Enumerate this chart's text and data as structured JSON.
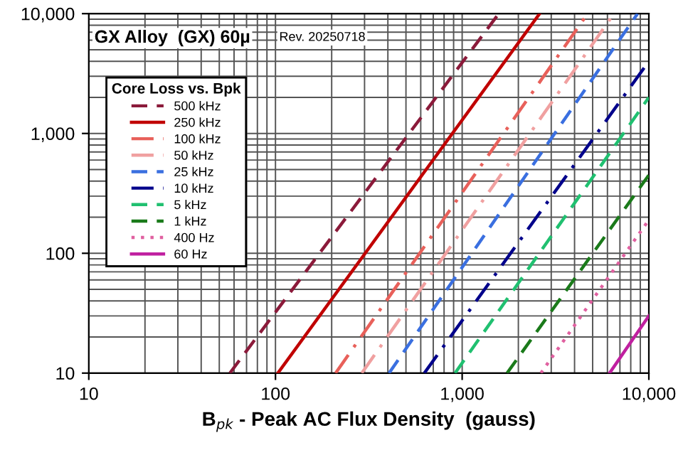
{
  "chart_data": {
    "type": "line",
    "title": "GX Alloy  (GX) 60µ",
    "annotations": [
      "Rev. 20250718"
    ],
    "xlabel": "B$_{pk}$ - Peak AC Flux Density  (gauss)",
    "legend_title": "Core Loss vs. Bpk",
    "log": "xy",
    "xlim": [
      10,
      10000
    ],
    "ylim": [
      10,
      10000
    ],
    "xticks": [
      10,
      100,
      {
        "value": 1000,
        "label": "1,000"
      },
      {
        "value": 10000,
        "label": "10,000"
      }
    ],
    "yticks": [
      10,
      100,
      {
        "value": 1000,
        "label": "1,000"
      },
      {
        "value": 10000,
        "label": "10,000"
      }
    ],
    "grid": true,
    "legend": "top left",
    "marker": "none",
    "series": [
      {
        "name": "500 kHz",
        "color": "#8b1a3a",
        "line_style": "dashed",
        "x": [
          57,
          1570
        ],
        "values": [
          10,
          10000
        ]
      },
      {
        "name": "250 kHz",
        "color": "#c00000",
        "line_style": "solid",
        "x": [
          103,
          2600
        ],
        "values": [
          10,
          10000
        ]
      },
      {
        "name": "100 kHz",
        "color": "#e8605a",
        "line_style": "dashdot",
        "x": [
          210,
          4700
        ],
        "values": [
          10,
          10000
        ]
      },
      {
        "name": "50 kHz",
        "color": "#f0a0a0",
        "line_style": "dashdot",
        "x": [
          290,
          6500
        ],
        "values": [
          10,
          10000
        ]
      },
      {
        "name": "25 kHz",
        "color": "#3a6fe0",
        "line_style": "dashed",
        "x": [
          406,
          8700
        ],
        "values": [
          10,
          10000
        ]
      },
      {
        "name": "10 kHz",
        "color": "#00008b",
        "line_style": "dashdot",
        "x": [
          627,
          10000
        ],
        "values": [
          10,
          4000
        ]
      },
      {
        "name": "5 kHz",
        "color": "#20c070",
        "line_style": "dashed",
        "x": [
          916,
          10000
        ],
        "values": [
          10,
          2000
        ]
      },
      {
        "name": "1 kHz",
        "color": "#1a7a1a",
        "line_style": "dashed",
        "x": [
          1740,
          10000
        ],
        "values": [
          10,
          450
        ]
      },
      {
        "name": "400 Hz",
        "color": "#e060a0",
        "line_style": "dotted",
        "x": [
          2640,
          10000
        ],
        "values": [
          10,
          190
        ]
      },
      {
        "name": "60 Hz",
        "color": "#c020a0",
        "line_style": "solid",
        "x": [
          6160,
          10000
        ],
        "values": [
          10,
          30
        ]
      }
    ]
  }
}
